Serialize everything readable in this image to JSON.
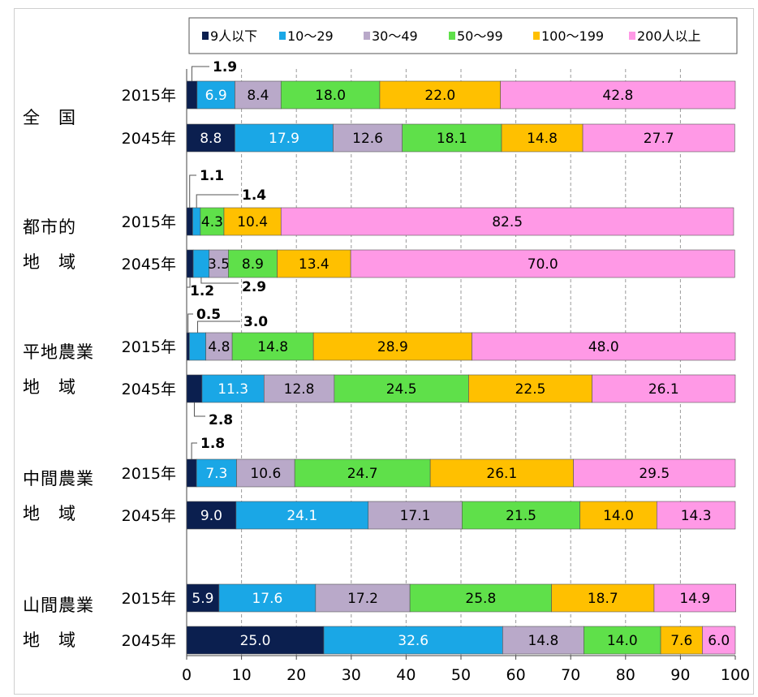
{
  "chart_data": {
    "type": "bar",
    "orientation": "horizontal",
    "stacked": true,
    "xlim": [
      0,
      100
    ],
    "x_ticks": [
      "0",
      "10",
      "20",
      "30",
      "40",
      "50",
      "60",
      "70",
      "80",
      "90",
      "100"
    ],
    "grid": "vertical-dashed",
    "legend_position": "top",
    "legend": [
      {
        "label": "9人以下",
        "color": "#0b1f4f"
      },
      {
        "label": "10～29",
        "color": "#1aa7e6"
      },
      {
        "label": "30～49",
        "color": "#b9a9c9"
      },
      {
        "label": "50～99",
        "color": "#5fe04a"
      },
      {
        "label": "100～199",
        "color": "#ffc000"
      },
      {
        "label": "200人以上",
        "color": "#ff99e6"
      }
    ],
    "groups": [
      {
        "label": "全　国",
        "label_lines": [
          "全　国"
        ],
        "rows": [
          {
            "year": "2015年",
            "values": [
              1.9,
              6.9,
              8.4,
              18.0,
              22.0,
              42.8
            ],
            "labels": [
              "1.9",
              "6.9",
              "8.4",
              "18.0",
              "22.0",
              "42.8"
            ]
          },
          {
            "year": "2045年",
            "values": [
              8.8,
              17.9,
              12.6,
              18.1,
              14.8,
              27.7
            ],
            "labels": [
              "8.8",
              "17.9",
              "12.6",
              "18.1",
              "14.8",
              "27.7"
            ]
          }
        ]
      },
      {
        "label": "都市的地域",
        "label_lines": [
          "都市的",
          "地　域"
        ],
        "rows": [
          {
            "year": "2015年",
            "values": [
              1.1,
              1.4,
              4.3,
              10.4,
              82.5
            ],
            "labels": [
              "1.1",
              "1.4",
              "4.3",
              "10.4",
              "82.5"
            ],
            "segments": [
              0,
              1,
              3,
              4,
              5
            ]
          },
          {
            "year": "2045年",
            "values": [
              1.2,
              2.9,
              3.5,
              8.9,
              13.4,
              70.0
            ],
            "labels": [
              "1.2",
              "2.9",
              "3.5",
              "8.9",
              "13.4",
              "70.0"
            ]
          }
        ]
      },
      {
        "label": "平地農業地域",
        "label_lines": [
          "平地農業",
          "地　域"
        ],
        "rows": [
          {
            "year": "2015年",
            "values": [
              0.5,
              3.0,
              4.8,
              14.8,
              28.9,
              48.0
            ],
            "labels": [
              "0.5",
              "3.0",
              "4.8",
              "14.8",
              "28.9",
              "48.0"
            ]
          },
          {
            "year": "2045年",
            "values": [
              2.8,
              11.3,
              12.8,
              24.5,
              22.5,
              26.1
            ],
            "labels": [
              "2.8",
              "11.3",
              "12.8",
              "24.5",
              "22.5",
              "26.1"
            ]
          }
        ]
      },
      {
        "label": "中間農業地域",
        "label_lines": [
          "中間農業",
          "地　域"
        ],
        "rows": [
          {
            "year": "2015年",
            "values": [
              1.8,
              7.3,
              10.6,
              24.7,
              26.1,
              29.5
            ],
            "labels": [
              "1.8",
              "7.3",
              "10.6",
              "24.7",
              "26.1",
              "29.5"
            ]
          },
          {
            "year": "2045年",
            "values": [
              9.0,
              24.1,
              17.1,
              21.5,
              14.0,
              14.3
            ],
            "labels": [
              "9.0",
              "24.1",
              "17.1",
              "21.5",
              "14.0",
              "14.3"
            ]
          }
        ]
      },
      {
        "label": "山間農業地域",
        "label_lines": [
          "山間農業",
          "地　域"
        ],
        "rows": [
          {
            "year": "2015年",
            "values": [
              5.9,
              17.6,
              17.2,
              25.8,
              18.7,
              14.9
            ],
            "labels": [
              "5.9",
              "17.6",
              "17.2",
              "25.8",
              "18.7",
              "14.9"
            ]
          },
          {
            "year": "2045年",
            "values": [
              25.0,
              32.6,
              14.8,
              14.0,
              7.6,
              6.0
            ],
            "labels": [
              "25.0",
              "32.6",
              "14.8",
              "14.0",
              "7.6",
              "6.0"
            ]
          }
        ]
      }
    ]
  }
}
